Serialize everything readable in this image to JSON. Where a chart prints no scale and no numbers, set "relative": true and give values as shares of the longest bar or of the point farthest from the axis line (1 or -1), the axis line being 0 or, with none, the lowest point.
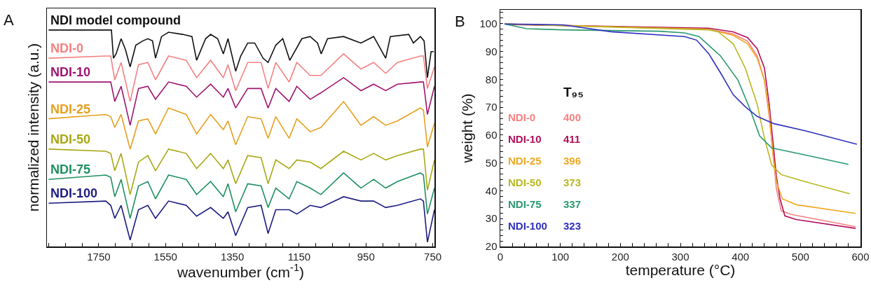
{
  "chart_data": [
    {
      "type": "line",
      "relative": true,
      "xlabel": "wavenumber (cm$^{-1}$)",
      "ylabel": "normalized intensity (a.u.)",
      "annotations": [
        "A"
      ],
      "legend": false,
      "grid": false,
      "xlim": [
        1905,
        745
      ],
      "xticks": [
        {
          "value": 1900,
          "label": null
        },
        {
          "value": 1850,
          "label": null
        },
        {
          "value": 1800,
          "label": null
        },
        1750,
        {
          "value": 1700,
          "label": null
        },
        {
          "value": 1650,
          "label": null
        },
        {
          "value": 1600,
          "label": null
        },
        1550,
        {
          "value": 1500,
          "label": null
        },
        {
          "value": 1450,
          "label": null
        },
        {
          "value": 1400,
          "label": null
        },
        1350,
        {
          "value": 1300,
          "label": null
        },
        {
          "value": 1250,
          "label": null
        },
        {
          "value": 1200,
          "label": null
        },
        1150,
        {
          "value": 1100,
          "label": null
        },
        {
          "value": 1050,
          "label": null
        },
        {
          "value": 1000,
          "label": null
        },
        950,
        {
          "value": 900,
          "label": null
        },
        {
          "value": 850,
          "label": null
        },
        {
          "value": 800,
          "label": null
        },
        750
      ],
      "series": [
        {
          "name": "NDI model compound",
          "color": "#111111",
          "x": [
            1900,
            1719,
            1712,
            1706,
            1698,
            1683,
            1670,
            1656,
            1639,
            1618,
            1603,
            1589,
            1580,
            1562,
            1541,
            1499,
            1471,
            1457,
            1430,
            1415,
            1394,
            1377,
            1363,
            1340,
            1325,
            1304,
            1283,
            1258,
            1243,
            1220,
            1199,
            1178,
            1142,
            1117,
            1095,
            1084,
            1065,
            1017,
            965,
            927,
            891,
            877,
            822,
            808,
            787,
            776,
            766,
            755,
            747
          ],
          "values": [
            1.0,
            1.0,
            1.0,
            0.87,
            0.89,
            0.96,
            0.91,
            0.83,
            0.93,
            0.95,
            0.96,
            0.95,
            0.87,
            0.97,
            0.99,
            0.98,
            0.97,
            0.86,
            0.96,
            0.98,
            0.96,
            0.89,
            0.96,
            0.81,
            0.88,
            0.94,
            0.94,
            0.87,
            0.85,
            0.93,
            0.96,
            0.86,
            0.96,
            0.97,
            0.94,
            0.89,
            0.96,
            0.97,
            0.94,
            0.97,
            0.87,
            0.97,
            0.98,
            0.94,
            0.97,
            0.95,
            0.78,
            0.9,
            0.9
          ]
        },
        {
          "name": "NDI-0",
          "color": "#f48080",
          "x": [
            1900,
            1729,
            1714,
            1702,
            1683,
            1656,
            1631,
            1603,
            1580,
            1541,
            1488,
            1457,
            1415,
            1377,
            1363,
            1340,
            1304,
            1264,
            1243,
            1220,
            1180,
            1157,
            1117,
            1085,
            1017,
            965,
            927,
            891,
            856,
            787,
            778,
            766,
            745
          ],
          "values": [
            0.87,
            0.88,
            0.88,
            0.77,
            0.85,
            0.67,
            0.84,
            0.85,
            0.77,
            0.88,
            0.86,
            0.78,
            0.86,
            0.78,
            0.84,
            0.72,
            0.85,
            0.85,
            0.73,
            0.85,
            0.76,
            0.85,
            0.79,
            0.79,
            0.89,
            0.82,
            0.85,
            0.8,
            0.85,
            0.88,
            0.88,
            0.73,
            0.83
          ]
        },
        {
          "name": "NDI-10",
          "color": "#a0146e",
          "x": [
            1900,
            1729,
            1714,
            1702,
            1683,
            1656,
            1631,
            1603,
            1580,
            1541,
            1488,
            1457,
            1415,
            1377,
            1363,
            1340,
            1304,
            1264,
            1243,
            1220,
            1180,
            1157,
            1117,
            1085,
            1017,
            965,
            927,
            891,
            856,
            787,
            778,
            766,
            745
          ],
          "values": [
            0.76,
            0.76,
            0.76,
            0.67,
            0.74,
            0.56,
            0.73,
            0.74,
            0.68,
            0.76,
            0.74,
            0.69,
            0.75,
            0.69,
            0.73,
            0.64,
            0.73,
            0.73,
            0.64,
            0.73,
            0.67,
            0.74,
            0.68,
            0.71,
            0.78,
            0.72,
            0.75,
            0.72,
            0.75,
            0.76,
            0.76,
            0.61,
            0.74
          ]
        },
        {
          "name": "NDI-25",
          "color": "#e6a01e",
          "x": [
            1900,
            1729,
            1714,
            1702,
            1683,
            1656,
            1631,
            1603,
            1580,
            1541,
            1488,
            1457,
            1415,
            1377,
            1363,
            1340,
            1304,
            1264,
            1243,
            1220,
            1180,
            1157,
            1117,
            1085,
            1017,
            965,
            927,
            891,
            856,
            787,
            778,
            766,
            745
          ],
          "values": [
            0.59,
            0.61,
            0.6,
            0.55,
            0.61,
            0.45,
            0.58,
            0.59,
            0.52,
            0.64,
            0.61,
            0.52,
            0.61,
            0.54,
            0.58,
            0.47,
            0.6,
            0.59,
            0.5,
            0.6,
            0.5,
            0.59,
            0.53,
            0.55,
            0.67,
            0.56,
            0.6,
            0.56,
            0.58,
            0.64,
            0.63,
            0.46,
            0.57
          ]
        },
        {
          "name": "NDI-50",
          "color": "#a8a814",
          "x": [
            1900,
            1729,
            1714,
            1702,
            1683,
            1656,
            1631,
            1603,
            1580,
            1541,
            1488,
            1457,
            1415,
            1377,
            1363,
            1340,
            1304,
            1264,
            1243,
            1220,
            1180,
            1157,
            1117,
            1085,
            1017,
            965,
            927,
            891,
            856,
            787,
            778,
            766,
            745
          ],
          "values": [
            0.45,
            0.44,
            0.43,
            0.35,
            0.43,
            0.24,
            0.39,
            0.42,
            0.35,
            0.45,
            0.43,
            0.36,
            0.43,
            0.36,
            0.4,
            0.29,
            0.42,
            0.41,
            0.29,
            0.4,
            0.36,
            0.4,
            0.39,
            0.36,
            0.44,
            0.4,
            0.43,
            0.4,
            0.42,
            0.45,
            0.45,
            0.26,
            0.4
          ]
        },
        {
          "name": "NDI-75",
          "color": "#1e9060",
          "x": [
            1900,
            1729,
            1714,
            1702,
            1683,
            1656,
            1631,
            1603,
            1580,
            1541,
            1488,
            1457,
            1415,
            1377,
            1363,
            1340,
            1304,
            1264,
            1243,
            1220,
            1180,
            1157,
            1117,
            1085,
            1017,
            965,
            927,
            891,
            856,
            787,
            778,
            766,
            745
          ],
          "values": [
            0.31,
            0.33,
            0.32,
            0.23,
            0.31,
            0.13,
            0.28,
            0.3,
            0.22,
            0.33,
            0.31,
            0.24,
            0.3,
            0.23,
            0.29,
            0.16,
            0.29,
            0.28,
            0.18,
            0.27,
            0.22,
            0.3,
            0.27,
            0.24,
            0.34,
            0.27,
            0.31,
            0.27,
            0.3,
            0.34,
            0.33,
            0.15,
            0.27
          ]
        },
        {
          "name": "NDI-100",
          "color": "#1c1c80",
          "x": [
            1900,
            1729,
            1714,
            1702,
            1683,
            1656,
            1631,
            1603,
            1580,
            1541,
            1488,
            1457,
            1415,
            1377,
            1363,
            1340,
            1304,
            1264,
            1243,
            1220,
            1180,
            1157,
            1117,
            1085,
            1017,
            965,
            927,
            891,
            856,
            787,
            778,
            766,
            745
          ],
          "values": [
            0.2,
            0.21,
            0.19,
            0.13,
            0.19,
            0.03,
            0.17,
            0.19,
            0.13,
            0.21,
            0.19,
            0.14,
            0.18,
            0.13,
            0.16,
            0.05,
            0.18,
            0.19,
            0.06,
            0.17,
            0.17,
            0.15,
            0.19,
            0.18,
            0.23,
            0.21,
            0.21,
            0.18,
            0.19,
            0.22,
            0.21,
            0.02,
            0.17
          ]
        }
      ]
    },
    {
      "type": "line",
      "xlabel": "temperature (°C)",
      "ylabel": "weight (%)",
      "annotations": [
        "B",
        "T₉₅",
        "400",
        "411",
        "396",
        "373",
        "337",
        "323"
      ],
      "legend": false,
      "grid": false,
      "xlim": [
        0,
        600
      ],
      "ylim": [
        20,
        105
      ],
      "xticks": [
        0,
        {
          "value": 20,
          "label": null
        },
        {
          "value": 40,
          "label": null
        },
        {
          "value": 60,
          "label": null
        },
        {
          "value": 80,
          "label": null
        },
        100,
        {
          "value": 120,
          "label": null
        },
        {
          "value": 140,
          "label": null
        },
        {
          "value": 160,
          "label": null
        },
        {
          "value": 180,
          "label": null
        },
        200,
        {
          "value": 220,
          "label": null
        },
        {
          "value": 240,
          "label": null
        },
        {
          "value": 260,
          "label": null
        },
        {
          "value": 280,
          "label": null
        },
        300,
        {
          "value": 320,
          "label": null
        },
        {
          "value": 340,
          "label": null
        },
        {
          "value": 360,
          "label": null
        },
        {
          "value": 380,
          "label": null
        },
        400,
        {
          "value": 420,
          "label": null
        },
        {
          "value": 440,
          "label": null
        },
        {
          "value": 460,
          "label": null
        },
        {
          "value": 480,
          "label": null
        },
        500,
        {
          "value": 520,
          "label": null
        },
        {
          "value": 540,
          "label": null
        },
        {
          "value": 560,
          "label": null
        },
        {
          "value": 580,
          "label": null
        },
        600
      ],
      "yticks": [
        20,
        {
          "value": 22,
          "label": null
        },
        {
          "value": 24,
          "label": null
        },
        {
          "value": 26,
          "label": null
        },
        {
          "value": 28,
          "label": null
        },
        30,
        {
          "value": 32,
          "label": null
        },
        {
          "value": 34,
          "label": null
        },
        {
          "value": 36,
          "label": null
        },
        {
          "value": 38,
          "label": null
        },
        40,
        {
          "value": 42,
          "label": null
        },
        {
          "value": 44,
          "label": null
        },
        {
          "value": 46,
          "label": null
        },
        {
          "value": 48,
          "label": null
        },
        50,
        {
          "value": 52,
          "label": null
        },
        {
          "value": 54,
          "label": null
        },
        {
          "value": 56,
          "label": null
        },
        {
          "value": 58,
          "label": null
        },
        60,
        {
          "value": 62,
          "label": null
        },
        {
          "value": 64,
          "label": null
        },
        {
          "value": 66,
          "label": null
        },
        {
          "value": 68,
          "label": null
        },
        70,
        {
          "value": 72,
          "label": null
        },
        {
          "value": 74,
          "label": null
        },
        {
          "value": 76,
          "label": null
        },
        {
          "value": 78,
          "label": null
        },
        80,
        {
          "value": 82,
          "label": null
        },
        {
          "value": 84,
          "label": null
        },
        {
          "value": 86,
          "label": null
        },
        {
          "value": 88,
          "label": null
        },
        90,
        {
          "value": 92,
          "label": null
        },
        {
          "value": 94,
          "label": null
        },
        {
          "value": 96,
          "label": null
        },
        {
          "value": 98,
          "label": null
        },
        100,
        {
          "value": 102,
          "label": null
        },
        {
          "value": 104,
          "label": null
        }
      ],
      "series": [
        {
          "name": "NDI-0",
          "color": "#f88080",
          "x": [
            7,
            347,
            388,
            412,
            428,
            440,
            448,
            454,
            460,
            468,
            485,
            592
          ],
          "values": [
            99.9,
            98.0,
            96.3,
            93.7,
            88.4,
            79.7,
            66.7,
            53.7,
            40.6,
            32.8,
            31.5,
            27.1
          ]
        },
        {
          "name": "NDI-10",
          "color": "#b0105a",
          "x": [
            19,
            347,
            388,
            412,
            428,
            440,
            448,
            454,
            460,
            466,
            474,
            493,
            592
          ],
          "values": [
            99.7,
            98.4,
            97.1,
            95.0,
            91.0,
            84.1,
            71.0,
            58.0,
            45.0,
            37.1,
            31.0,
            29.7,
            26.5
          ]
        },
        {
          "name": "NDI-25",
          "color": "#f0a820",
          "x": [
            11,
            347,
            388,
            412,
            428,
            440,
            448,
            454,
            460,
            470,
            493,
            592
          ],
          "values": [
            99.9,
            98.0,
            95.8,
            92.8,
            87.6,
            79.7,
            68.4,
            53.7,
            43.2,
            37.1,
            35.0,
            31.9
          ]
        },
        {
          "name": "NDI-50",
          "color": "#b8b820",
          "x": [
            7,
            347,
            363,
            388,
            408,
            428,
            440,
            452,
            468,
            509,
            582
          ],
          "values": [
            99.9,
            97.8,
            97.1,
            92.8,
            84.1,
            71.0,
            58.9,
            49.3,
            45.8,
            43.2,
            38.9
          ]
        },
        {
          "name": "NDI-75",
          "color": "#2a9a70",
          "x": [
            7,
            44,
            104,
            266,
            307,
            331,
            367,
            396,
            416,
            432,
            452,
            509,
            580
          ],
          "values": [
            99.9,
            98.2,
            97.8,
            97.3,
            96.7,
            95.4,
            88.4,
            79.7,
            69.3,
            59.7,
            55.4,
            52.8,
            49.5
          ]
        },
        {
          "name": "NDI-100",
          "color": "#3030c0",
          "x": [
            7,
            104,
            185,
            307,
            327,
            347,
            367,
            388,
            408,
            428,
            456,
            509,
            594
          ],
          "values": [
            99.9,
            99.6,
            97.1,
            95.4,
            94.1,
            89.3,
            82.3,
            74.5,
            70.2,
            66.7,
            64.1,
            61.5,
            56.7
          ]
        }
      ]
    }
  ]
}
